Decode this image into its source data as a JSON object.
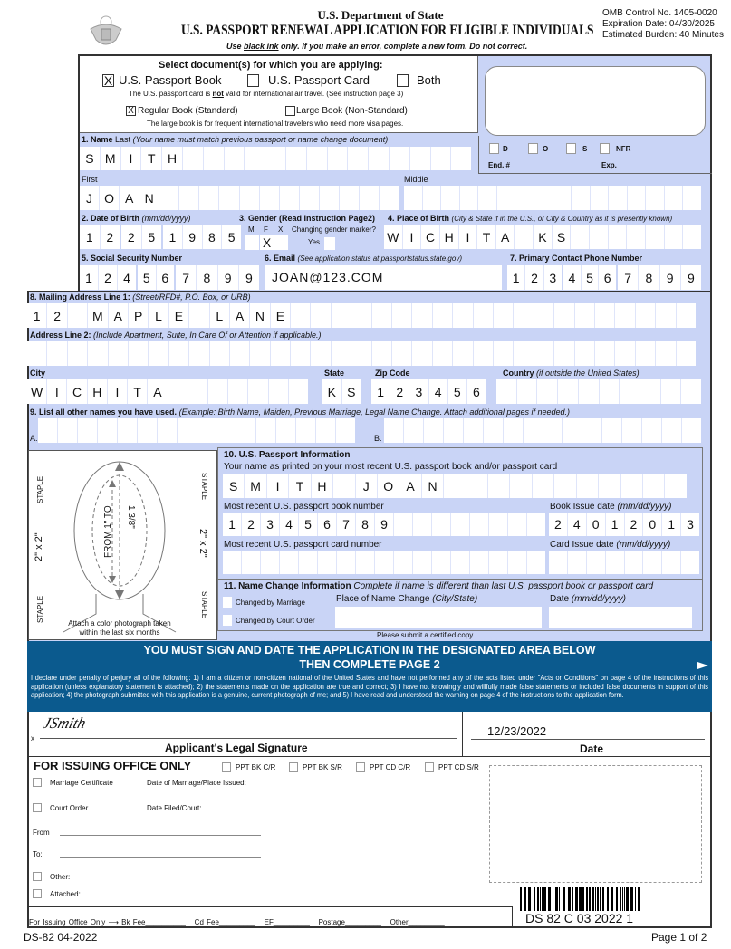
{
  "header": {
    "department": "U.S. Department of State",
    "title": "U.S. PASSPORT RENEWAL APPLICATION FOR ELIGIBLE INDIVIDUALS",
    "instruction_pre": "Use ",
    "instruction_ul": "black ink",
    "instruction_post": " only. If you make an error, complete a new form. Do not correct.",
    "omb": "OMB Control No. 1405-0020",
    "expiration": "Expiration Date: 04/30/2025",
    "burden": "Estimated Burden: 40 Minutes",
    "seal_icon": "great-seal-icon"
  },
  "document_select": {
    "heading": "Select document(s) for which you are applying:",
    "options": [
      {
        "label": "U.S. Passport Book",
        "checked": true
      },
      {
        "label": "U.S. Passport Card",
        "checked": false
      },
      {
        "label": "Both",
        "checked": false
      }
    ],
    "card_note_pre": "The U.S. passport card is ",
    "card_note_not": "not",
    "card_note_post": " valid for international air travel. (See instruction page 3)",
    "book_options": [
      {
        "label": "Regular Book (Standard)",
        "checked": true
      },
      {
        "label": "Large Book (Non-Standard)",
        "checked": false
      }
    ],
    "large_note": "The large book is for frequent international travelers who need more visa pages."
  },
  "office_box": {
    "d": "D",
    "o": "O",
    "s": "S",
    "nfr": "NFR",
    "end": "End. #",
    "exp": "Exp."
  },
  "name": {
    "label_num": "1. Name",
    "label_last": "Last",
    "hint": "(Your name must match previous passport or name change document)",
    "last": "SMITH",
    "first_label": "First",
    "first": "JOAN",
    "middle_label": "Middle",
    "middle": ""
  },
  "dob": {
    "label": "2. Date of Birth",
    "hint": "(mm/dd/yyyy)",
    "mm": "12",
    "dd": "25",
    "yyyy": "1985"
  },
  "gender": {
    "label": "3. Gender (Read Instruction Page2)",
    "m": "M",
    "f": "F",
    "x": "X",
    "selected": "F",
    "mark": "X",
    "changing": "Changing gender marker?",
    "yes": "Yes"
  },
  "birthplace": {
    "label": "4. Place of Birth",
    "hint": "(City & State if in the U.S., or City & Country as it is presently known)",
    "value": "WICHITA KS"
  },
  "ssn": {
    "label": "5. Social Security Number",
    "p1": "124",
    "p2": "56",
    "p3": "7899"
  },
  "email": {
    "label": "6. Email",
    "hint": "(See application status at passportstatus.state.gov)",
    "value": "JOAN@123.COM"
  },
  "phone": {
    "label": "7. Primary Contact Phone Number",
    "p1": "123",
    "p2": "456",
    "p3": "7899"
  },
  "address": {
    "line1_label": "8. Mailing Address Line 1:",
    "line1_hint": "(Street/RFD#, P.O. Box, or URB)",
    "line1": "12 MAPLE LANE",
    "line2_label": "Address Line 2:",
    "line2_hint": "(Include Apartment, Suite, In Care Of or Attention if applicable.)",
    "line2": "",
    "city_label": "City",
    "city": "WICHITA",
    "state_label": "State",
    "state": "KS",
    "zip_label": "Zip Code",
    "zip": "123456",
    "country_label": "Country",
    "country_hint": "(if outside the United States)",
    "country": ""
  },
  "other_names": {
    "label": "9. List all other names you have used.",
    "hint": "(Example: Birth Name, Maiden, Previous Marriage, Legal Name Change.  Attach additional  pages if needed.)",
    "a": "A.",
    "b": "B."
  },
  "photo": {
    "staple": "STAPLE",
    "size": "2\" x 2\"",
    "from": "FROM 1\" TO",
    "to": "1 3/8\"",
    "caption1": "Attach a color photograph taken",
    "caption2": "within the last six months"
  },
  "passport_info": {
    "label": "10. U.S. Passport Information",
    "name_label": "Your name as printed on your most recent U.S. passport book and/or passport card",
    "name": "SMITH JOAN",
    "book_label": "Most recent U.S. passport book number",
    "book": "123456789",
    "book_date_label": "Book Issue date",
    "date_hint": "(mm/dd/yyyy)",
    "book_date": "24012013",
    "card_label": "Most recent U.S. passport card number",
    "card": "",
    "card_date_label": "Card Issue date",
    "card_date": ""
  },
  "name_change": {
    "label": "11. Name Change Information",
    "hint": "Complete if name is different than last U.S. passport book or passport card",
    "marriage": "Changed by Marriage",
    "court": "Changed by Court Order",
    "place_label": "Place of Name Change",
    "place_hint": "(City/State)",
    "date_label": "Date",
    "date_hint": "(mm/dd/yyyy)",
    "note": "Please submit a certified copy."
  },
  "banner": {
    "line1": "YOU MUST SIGN AND DATE THE APPLICATION IN THE DESIGNATED AREA BELOW",
    "line2": "THEN COMPLETE PAGE 2",
    "declaration": "I declare under penalty of perjury all of the following: 1) I am a citizen or non-citizen national of the United States and have not performed any of the acts listed under \"Acts or Conditions\" on page 4 of the instructions of this application (unless explanatory statement is attached); 2) the statements made on the application are true and correct; 3) I have not knowingly and willfully made false statements or included false documents in support of this application; 4) the photograph submitted with this application is a genuine, current photograph of me; and 5) I have read and understood the warning on page 4 of the instructions to the application form.",
    "color": "#0b5a8e"
  },
  "signature": {
    "x": "x",
    "sig_text": "JSmith",
    "label": "Applicant's Legal Signature",
    "date": "12/23/2022",
    "date_label": "Date"
  },
  "issuing": {
    "title": "FOR ISSUING OFFICE ONLY",
    "types": [
      "PPT BK C/R",
      "PPT BK S/R",
      "PPT CD C/R",
      "PPT CD S/R"
    ],
    "marriage": "Marriage Certificate",
    "marriage_date": "Date of Marriage/Place Issued:",
    "court": "Court Order",
    "court_date": "Date Filed/Court:",
    "from": "From",
    "to": "To:",
    "other": "Other:",
    "attached": "Attached:",
    "fees_label": "For Issuing Office Only",
    "bk": "Bk Fee",
    "cd": "Cd Fee",
    "ef": "EF",
    "postage": "Postage",
    "other_fee": "Other",
    "barcode": "DS 82 C 03 2022 1"
  },
  "footer": {
    "form": "DS-82 04-2022",
    "page": "Page 1 of 2"
  }
}
